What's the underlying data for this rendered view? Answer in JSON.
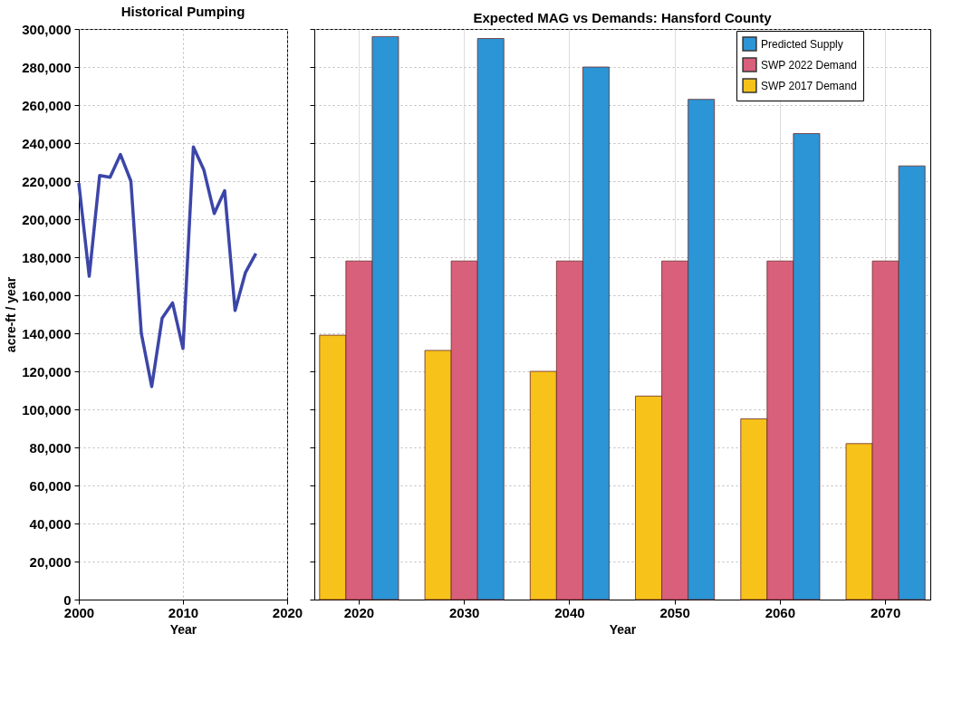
{
  "chart_data": [
    {
      "type": "line",
      "title": "Historical Pumping",
      "xlabel": "Year",
      "ylabel": "acre-ft / year",
      "x": [
        2000,
        2001,
        2002,
        2003,
        2004,
        2005,
        2006,
        2007,
        2008,
        2009,
        2010,
        2011,
        2012,
        2013,
        2014,
        2015,
        2016,
        2017
      ],
      "series": [
        {
          "color": "#3c46a8",
          "values": [
            219000,
            170000,
            223000,
            222000,
            234000,
            220000,
            140000,
            112000,
            148000,
            156000,
            132000,
            238000,
            226000,
            203000,
            215000,
            152000,
            172000,
            182000
          ]
        }
      ],
      "xlim": [
        2000,
        2020
      ],
      "xticks": [
        2000,
        2010,
        2020
      ],
      "ylim": [
        0,
        300000
      ],
      "yticks": [
        0,
        {
          "value": 20000,
          "label": "20,000"
        },
        {
          "value": 40000,
          "label": "40,000"
        },
        {
          "value": 60000,
          "label": "60,000"
        },
        {
          "value": 80000,
          "label": "80,000"
        },
        {
          "value": 100000,
          "label": "100,000"
        },
        {
          "value": 120000,
          "label": "120,000"
        },
        {
          "value": 140000,
          "label": "140,000"
        },
        {
          "value": 160000,
          "label": "160,000"
        },
        {
          "value": 180000,
          "label": "180,000"
        },
        {
          "value": 200000,
          "label": "200,000"
        },
        {
          "value": 220000,
          "label": "220,000"
        },
        {
          "value": 240000,
          "label": "240,000"
        },
        {
          "value": 260000,
          "label": "260,000"
        },
        {
          "value": 280000,
          "label": "280,000"
        },
        {
          "value": 300000,
          "label": "300,000"
        }
      ],
      "grid": true,
      "marker": "none",
      "line_style": "solid"
    },
    {
      "type": "bar",
      "title": "Expected MAG vs Demands:  Hansford County",
      "xlabel": "Year",
      "categories": [
        "2020",
        "2030",
        "2040",
        "2050",
        "2060",
        "2070"
      ],
      "series": [
        {
          "name": "SWP 2017 Demand",
          "color": "#f7c21a",
          "values": [
            139000,
            131000,
            120000,
            107000,
            95000,
            82000
          ]
        },
        {
          "name": "SWP 2022 Demand",
          "color": "#d9607a",
          "values": [
            178000,
            178000,
            178000,
            178000,
            178000,
            178000
          ]
        },
        {
          "name": "Predicted Supply",
          "color": "#2b95d6",
          "values": [
            296000,
            295000,
            280000,
            263000,
            245000,
            228000
          ]
        }
      ],
      "ylim": [
        0,
        300000
      ],
      "yticks": [
        0,
        20000,
        40000,
        60000,
        80000,
        100000,
        120000,
        140000,
        160000,
        180000,
        200000,
        220000,
        240000,
        260000,
        280000,
        300000
      ],
      "grid": true,
      "legend": "top right",
      "tick_labels": "x"
    }
  ]
}
